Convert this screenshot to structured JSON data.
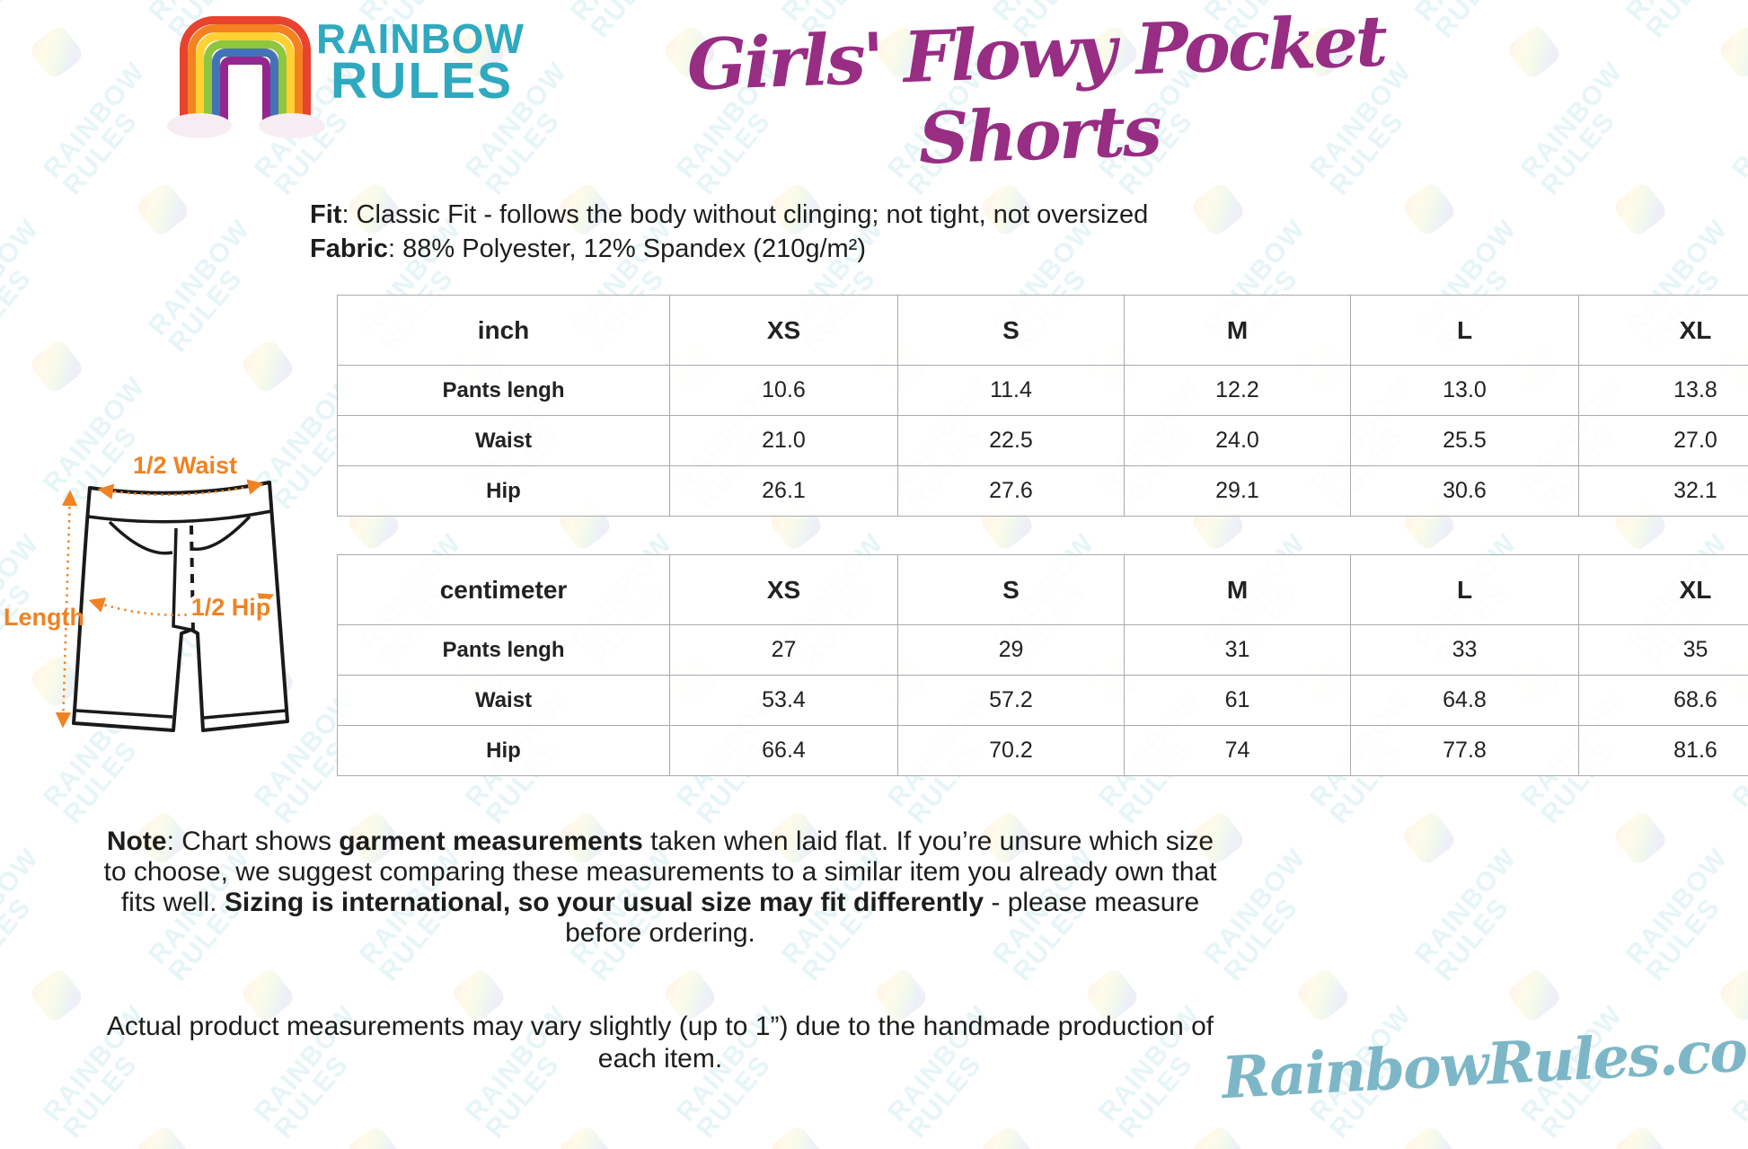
{
  "page_title": "Girls' Flowy Pocket Shorts",
  "brand": {
    "name_line1": "RAINBOW",
    "name_line2": "RULES",
    "website": "RainbowRules.com"
  },
  "product": {
    "fit_label": "Fit",
    "fit_text": ": Classic Fit - follows the body without clinging; not tight, not oversized",
    "fabric_label": "Fabric",
    "fabric_text": ": 88% Polyester, 12% Spandex (210g/m²)"
  },
  "diagram": {
    "labels": {
      "half_waist": "1/2 Waist",
      "length": "Length",
      "half_hip": "1/2 Hip"
    }
  },
  "size_tables": [
    {
      "unit": "inch",
      "sizes": [
        "XS",
        "S",
        "M",
        "L",
        "XL"
      ],
      "rows": [
        {
          "label": "Pants lengh",
          "values": [
            "10.6",
            "11.4",
            "12.2",
            "13.0",
            "13.8"
          ]
        },
        {
          "label": "Waist",
          "values": [
            "21.0",
            "22.5",
            "24.0",
            "25.5",
            "27.0"
          ]
        },
        {
          "label": "Hip",
          "values": [
            "26.1",
            "27.6",
            "29.1",
            "30.6",
            "32.1"
          ]
        }
      ]
    },
    {
      "unit": "centimeter",
      "sizes": [
        "XS",
        "S",
        "M",
        "L",
        "XL"
      ],
      "rows": [
        {
          "label": "Pants lengh",
          "values": [
            "27",
            "29",
            "31",
            "33",
            "35"
          ]
        },
        {
          "label": "Waist",
          "values": [
            "53.4",
            "57.2",
            "61",
            "64.8",
            "68.6"
          ]
        },
        {
          "label": "Hip",
          "values": [
            "66.4",
            "70.2",
            "74",
            "77.8",
            "81.6"
          ]
        }
      ]
    }
  ],
  "note": {
    "segments": [
      {
        "text": "Note",
        "bold": true
      },
      {
        "text": ": Chart shows ",
        "bold": false
      },
      {
        "text": "garment measurements",
        "bold": true
      },
      {
        "text": " taken when laid flat. If you’re unsure which size to choose, we suggest comparing these measurements to a similar item you already own that fits well. ",
        "bold": false
      },
      {
        "text": "Sizing is international, so your usual size may fit differently",
        "bold": true
      },
      {
        "text": " - please measure before ordering.",
        "bold": false
      }
    ]
  },
  "disclaimer": "Actual product measurements may vary slightly (up to 1”) due to the handmade production of each item.",
  "watermark_text": "RAINBOW RULES",
  "colors": {
    "title_purple": "#982d84",
    "logo_teal": "#2fa9bf",
    "accent_orange": "#f08222",
    "website_blue": "#7db7c7",
    "table_border": "#aaaaaa",
    "rainbow": [
      "#e8432f",
      "#f58220",
      "#ffd231",
      "#8dc63f",
      "#4472b9",
      "#93278f"
    ]
  }
}
